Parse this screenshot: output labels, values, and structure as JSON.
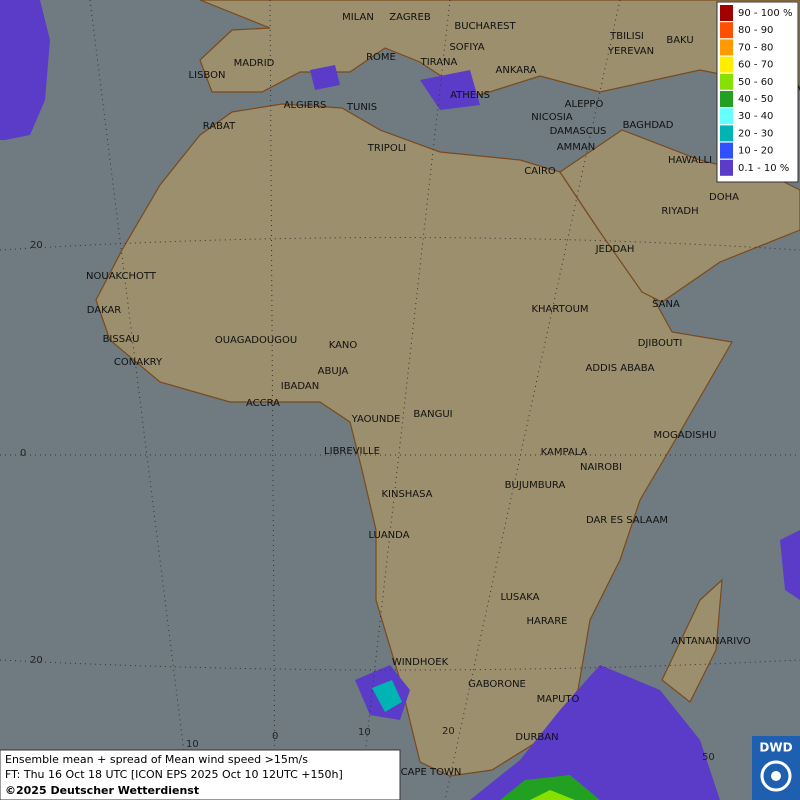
{
  "legend": {
    "items": [
      {
        "label": "90 - 100 %",
        "color": "#a00000"
      },
      {
        "label": "80 - 90",
        "color": "#ff5000"
      },
      {
        "label": "70 - 80",
        "color": "#ff9a00"
      },
      {
        "label": "60 - 70",
        "color": "#ffee00"
      },
      {
        "label": "50 - 60",
        "color": "#88e000"
      },
      {
        "label": "40 - 50",
        "color": "#22a022"
      },
      {
        "label": "30 - 40",
        "color": "#66ffff"
      },
      {
        "label": "20 - 30",
        "color": "#00b4b4"
      },
      {
        "label": "10 - 20",
        "color": "#3050ff"
      },
      {
        "label": "0.1 - 10 %",
        "color": "#5a3cc8"
      }
    ]
  },
  "cities": [
    "MILAN",
    "ZAGREB",
    "BUCHAREST",
    "SOFIYA",
    "ROME",
    "TIRANA",
    "ANKARA",
    "TBILISI",
    "BAKU",
    "YEREVAN",
    "MADRID",
    "LISBON",
    "TEHRA",
    "ATHENS",
    "ALGIERS",
    "TUNIS",
    "ALEPPO",
    "NICOSIA",
    "BAGHDAD",
    "RABAT",
    "DAMASCUS",
    "AMMAN",
    "TRIPOLI",
    "HAWALLI",
    "CAIRO",
    "DOHA",
    "RIYADH",
    "JEDDAH",
    "NOUAKCHOTT",
    "SANA",
    "KHARTOUM",
    "DAKAR",
    "BISSAU",
    "DJIBOUTI",
    "OUAGADOUGOU",
    "KANO",
    "CONAKRY",
    "ADDIS ABABA",
    "ABUJA",
    "IBADAN",
    "ACCRA",
    "YAOUNDE",
    "BANGUI",
    "MOGADISHU",
    "LIBREVILLE",
    "KAMPALA",
    "NAIROBI",
    "KINSHASA",
    "BUJUMBURA",
    "DAR ES SALAAM",
    "LUANDA",
    "LUSAKA",
    "ANTANANARIVO",
    "HARARE",
    "WINDHOEK",
    "GABORONE",
    "MAPUTO",
    "DURBAN",
    "CAPE TOWN"
  ],
  "grid_labels": [
    "20",
    "0",
    "20",
    "10",
    "0",
    "10",
    "20",
    "50"
  ],
  "footer": {
    "line1": "Ensemble mean + spread of Mean wind speed >15m/s",
    "line2": "FT: Thu 16 Oct 18 UTC [ICON EPS 2025 Oct 10 12UTC +150h]",
    "line3": "©2025 Deutscher Wetterdienst"
  },
  "logo": "DWD"
}
